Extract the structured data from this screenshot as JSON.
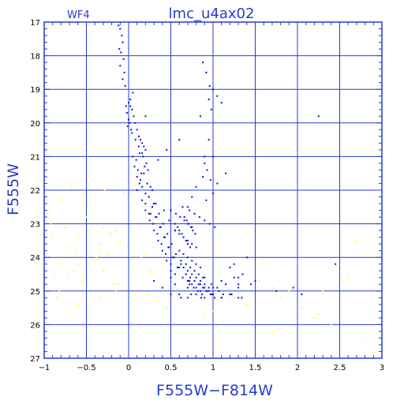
{
  "chart_data": {
    "type": "scatter",
    "title": "lmc_u4ax02",
    "subtitle": "WF4",
    "xlabel": "F555W−F814W",
    "ylabel": "F555W",
    "xlim": [
      -1,
      3
    ],
    "ylim": [
      27,
      17
    ],
    "y_inverted": true,
    "grid": true,
    "x_ticks": [
      -1,
      -0.5,
      0,
      0.5,
      1,
      1.5,
      2,
      2.5,
      3
    ],
    "x_tick_labels": [
      "−1",
      "−0.5",
      "0",
      "0.5",
      "1",
      "1.5",
      "2",
      "2.5",
      "3"
    ],
    "y_ticks": [
      17,
      18,
      19,
      20,
      21,
      22,
      23,
      24,
      25,
      26,
      27
    ],
    "y_tick_labels": [
      "17",
      "18",
      "19",
      "20",
      "21",
      "22",
      "23",
      "24",
      "25",
      "26",
      "27"
    ],
    "colors": {
      "frame": "#2a3cc8",
      "grid": "#2a3cc8",
      "blue_points": "#1010d8",
      "yellow_points": "#ffff33"
    },
    "series": [
      {
        "color": "blue",
        "x": [
          -0.12,
          -0.1,
          -0.08,
          -0.07,
          -0.11,
          -0.09,
          -0.06,
          -0.1,
          -0.05,
          -0.07,
          -0.04,
          0.05,
          0.02,
          -0.03,
          -0.02,
          0.0,
          -0.01,
          0.03,
          0.01,
          0.0,
          0.04,
          0.06,
          0.08,
          0.1,
          0.12,
          0.14,
          0.16,
          0.18,
          0.2,
          0.04,
          0.08,
          0.12,
          0.16,
          0.05,
          0.09,
          0.13,
          0.17,
          0.21,
          0.07,
          0.11,
          0.15,
          0.19,
          0.23,
          0.1,
          0.14,
          0.18,
          0.22,
          0.26,
          0.1,
          0.13,
          0.16,
          0.2,
          0.24,
          0.28,
          0.16,
          0.2,
          0.24,
          0.28,
          0.32,
          0.2,
          0.24,
          0.28,
          0.32,
          0.36,
          0.25,
          0.29,
          0.33,
          0.37,
          0.41,
          0.3,
          0.34,
          0.38,
          0.42,
          0.46,
          0.35,
          0.39,
          0.43,
          0.47,
          0.51,
          0.4,
          0.44,
          0.48,
          0.52,
          0.56,
          0.45,
          0.5,
          0.54,
          0.58,
          0.62,
          0.5,
          0.55,
          0.6,
          0.64,
          0.68,
          0.72,
          0.5,
          0.56,
          0.61,
          0.66,
          0.7,
          0.75,
          0.55,
          0.6,
          0.65,
          0.7,
          0.75,
          0.8,
          0.6,
          0.65,
          0.7,
          0.75,
          0.8,
          0.85,
          0.62,
          0.68,
          0.73,
          0.78,
          0.83,
          0.88,
          0.65,
          0.7,
          0.75,
          0.8,
          0.85,
          0.9,
          0.95,
          0.68,
          0.73,
          0.78,
          0.83,
          0.88,
          0.93,
          0.98,
          0.7,
          0.75,
          0.8,
          0.85,
          0.9,
          0.95,
          1.0,
          1.05,
          0.72,
          0.77,
          0.82,
          0.87,
          0.92,
          0.97,
          1.02,
          1.07,
          1.12,
          0.55,
          0.6,
          0.65,
          0.7,
          0.58,
          0.63,
          0.68,
          0.73,
          0.66,
          0.71,
          0.76,
          0.69,
          0.74,
          0.79,
          0.64,
          0.72,
          0.78,
          0.84,
          0.9,
          0.96,
          1.02,
          0.6,
          0.7,
          0.8,
          0.9,
          1.0,
          1.1,
          1.2,
          1.3,
          0.5,
          0.62,
          0.74,
          0.86,
          0.98,
          1.1,
          1.22,
          1.34,
          0.4,
          0.55,
          0.7,
          0.85,
          1.0,
          1.15,
          1.3,
          1.45,
          0.3,
          0.5,
          0.7,
          0.9,
          1.1,
          1.3,
          1.5,
          1.0,
          1.05,
          1.1,
          0.95,
          0.9,
          1.15,
          1.2,
          1.25,
          0.85,
          1.3,
          0.02,
          0.2,
          0.45,
          0.6,
          0.35,
          0.88,
          0.92,
          0.96,
          0.9,
          0.88,
          0.8,
          0.75,
          0.7,
          0.92,
          1.0,
          1.05,
          0.42,
          0.48,
          0.55,
          0.3,
          0.26,
          1.25,
          1.35,
          1.4,
          2.25,
          1.75,
          1.95,
          2.05,
          2.45,
          0.95,
          0.98,
          1.0,
          0.93,
          0.97
        ],
        "y": [
          17.1,
          17.2,
          17.4,
          17.6,
          17.8,
          17.9,
          18.1,
          18.3,
          18.5,
          18.7,
          18.9,
          19.1,
          19.3,
          19.5,
          19.7,
          19.9,
          20.1,
          20.2,
          20.0,
          19.4,
          19.6,
          19.8,
          20.0,
          20.2,
          20.4,
          20.5,
          20.6,
          20.7,
          20.8,
          20.3,
          20.5,
          20.7,
          20.9,
          21.0,
          21.1,
          20.9,
          21.0,
          21.2,
          21.3,
          21.4,
          21.5,
          21.3,
          21.4,
          21.6,
          21.7,
          21.5,
          21.8,
          21.9,
          22.0,
          21.8,
          21.9,
          22.1,
          22.2,
          22.0,
          22.3,
          22.4,
          22.2,
          22.5,
          22.4,
          22.6,
          22.7,
          22.5,
          22.8,
          22.7,
          22.9,
          23.0,
          22.8,
          23.1,
          23.0,
          23.2,
          23.3,
          23.1,
          23.4,
          23.3,
          23.5,
          23.6,
          23.4,
          23.7,
          23.6,
          23.8,
          23.9,
          23.7,
          24.0,
          23.9,
          24.1,
          24.2,
          24.0,
          24.3,
          24.2,
          24.4,
          24.5,
          24.3,
          24.6,
          24.5,
          24.7,
          22.6,
          22.7,
          22.8,
          22.9,
          23.0,
          23.1,
          23.2,
          23.3,
          23.4,
          23.5,
          23.6,
          23.7,
          23.8,
          23.9,
          24.0,
          24.1,
          24.2,
          24.3,
          24.1,
          24.2,
          24.3,
          24.4,
          24.5,
          24.6,
          24.3,
          24.4,
          24.5,
          24.6,
          24.7,
          24.8,
          24.9,
          24.5,
          24.6,
          24.7,
          24.8,
          24.9,
          25.0,
          24.8,
          24.7,
          24.8,
          24.9,
          25.0,
          24.9,
          25.0,
          25.1,
          24.9,
          24.8,
          24.9,
          25.0,
          25.1,
          25.0,
          25.1,
          25.2,
          25.0,
          25.1,
          23.0,
          23.2,
          23.4,
          23.6,
          23.1,
          23.3,
          23.5,
          23.7,
          22.8,
          23.0,
          23.2,
          22.9,
          23.1,
          23.3,
          22.5,
          22.6,
          22.7,
          22.8,
          22.9,
          23.0,
          23.1,
          25.1,
          25.2,
          25.1,
          25.2,
          25.1,
          25.2,
          25.1,
          25.2,
          25.1,
          25.2,
          25.1,
          25.2,
          25.1,
          25.2,
          25.1,
          25.2,
          24.9,
          24.8,
          24.9,
          24.8,
          24.9,
          24.8,
          24.9,
          24.8,
          24.7,
          24.6,
          24.7,
          24.6,
          24.7,
          24.6,
          24.7,
          19.0,
          19.2,
          19.4,
          20.5,
          21.0,
          21.5,
          24.3,
          24.6,
          19.8,
          24.8,
          19.5,
          19.8,
          20.8,
          20.5,
          21.1,
          18.2,
          18.5,
          18.9,
          21.2,
          21.6,
          21.9,
          22.2,
          22.5,
          22.3,
          22.1,
          21.8,
          22.6,
          22.9,
          23.2,
          22.4,
          22.7,
          24.2,
          24.5,
          24.0,
          19.8,
          25.0,
          24.9,
          25.1,
          24.2,
          19.3,
          19.6,
          21.0,
          21.4,
          21.7
        ]
      },
      {
        "color": "yellow",
        "x": [
          -0.95,
          -0.9,
          -0.85,
          -0.8,
          -0.78,
          -0.72,
          -0.68,
          -0.62,
          -0.58,
          -0.55,
          -0.5,
          -0.48,
          -0.42,
          -0.38,
          -0.35,
          -0.3,
          -0.28,
          -0.22,
          -0.18,
          -0.15,
          -0.1,
          -0.05,
          0.05,
          0.12,
          0.18,
          0.22,
          0.28,
          0.3,
          0.35,
          0.4,
          -0.88,
          -0.82,
          -0.75,
          -0.65,
          -0.6,
          -0.45,
          -0.4,
          -0.33,
          -0.25,
          -0.2,
          -0.12,
          0.08,
          0.15,
          0.25,
          -0.7,
          -0.52,
          -0.3,
          1.1,
          1.3,
          1.45,
          1.55,
          1.7,
          1.8,
          1.9,
          2.05,
          2.2,
          2.25,
          2.3,
          2.4,
          2.6,
          2.7,
          2.8,
          1.25,
          1.4,
          1.6,
          1.72,
          -0.92,
          -0.6,
          -0.35,
          0.45,
          2.55,
          1.0,
          1.2,
          0.9,
          -0.15
        ],
        "y": [
          22.7,
          23.4,
          25.2,
          24.1,
          22.3,
          24.5,
          21.9,
          23.8,
          24.2,
          24.7,
          22.8,
          23.2,
          25.3,
          24.0,
          23.6,
          24.4,
          22.0,
          23.3,
          24.8,
          25.0,
          23.5,
          22.1,
          24.3,
          24.9,
          23.9,
          25.1,
          24.5,
          23.7,
          25.3,
          24.2,
          24.6,
          25.0,
          23.1,
          24.4,
          25.4,
          22.6,
          24.1,
          25.2,
          23.9,
          24.6,
          24.8,
          25.1,
          24.0,
          24.4,
          23.7,
          22.1,
          23.1,
          25.9,
          24.8,
          25.3,
          24.7,
          26.3,
          25.2,
          25.0,
          25.5,
          25.8,
          25.7,
          25.0,
          26.0,
          24.6,
          23.5,
          26.4,
          25.2,
          25.4,
          24.1,
          24.9,
          23.0,
          23.4,
          23.8,
          25.5,
          24.7,
          25.6,
          25.1,
          25.7,
          23.2
        ]
      }
    ]
  }
}
